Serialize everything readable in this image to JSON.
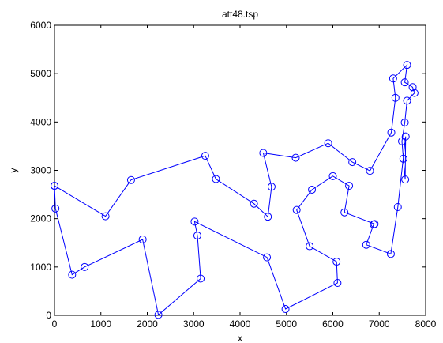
{
  "chart_data": {
    "type": "line",
    "title": "att48.tsp",
    "xlabel": "x",
    "ylabel": "y",
    "xlim": [
      0,
      8000
    ],
    "ylim": [
      0,
      6000
    ],
    "xticks": [
      0,
      1000,
      2000,
      3000,
      4000,
      5000,
      6000,
      7000,
      8000
    ],
    "yticks": [
      0,
      1000,
      2000,
      3000,
      4000,
      5000,
      6000
    ],
    "grid": false,
    "colors": {
      "line": "#0000ff",
      "axis": "#000000"
    },
    "series": [
      {
        "marker": "circle",
        "x": [
          0,
          1100,
          1650,
          3250,
          3480,
          4300,
          4600,
          4680,
          4500,
          5200,
          5900,
          6420,
          6800,
          7260,
          7350,
          7300,
          7600,
          7550,
          7720,
          7760,
          7600,
          7550,
          7490,
          7520,
          7560,
          7570,
          7400,
          7250,
          6720,
          6880,
          6900,
          6250,
          6350,
          6000,
          5550,
          5220,
          5500,
          6080,
          6100,
          4980,
          4580,
          3020,
          3080,
          3150,
          2240,
          1900,
          650,
          380,
          20,
          0
        ],
        "y": [
          2680,
          2050,
          2800,
          3300,
          2820,
          2310,
          2040,
          2660,
          3360,
          3260,
          3560,
          3170,
          2990,
          3780,
          4500,
          4900,
          5180,
          4820,
          4720,
          4600,
          4440,
          3990,
          3600,
          3240,
          2810,
          3700,
          2240,
          1270,
          1460,
          1880,
          1890,
          2130,
          2680,
          2880,
          2600,
          2180,
          1430,
          1110,
          670,
          130,
          1200,
          1940,
          1650,
          760,
          10,
          1570,
          1000,
          840,
          2210,
          2680
        ]
      }
    ]
  }
}
